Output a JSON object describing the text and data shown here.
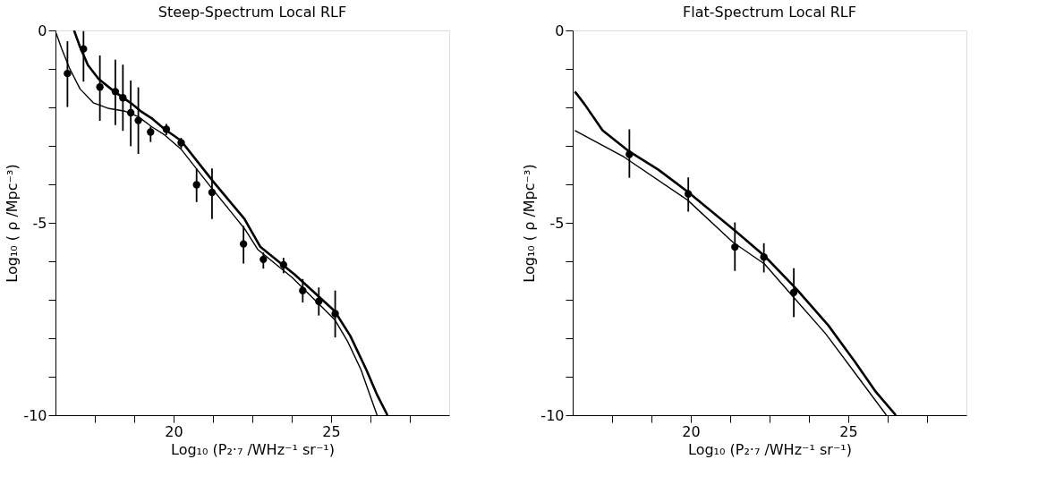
{
  "chart_data": [
    {
      "type": "line",
      "title": "Steep-Spectrum Local RLF",
      "xlabel": "Log₁₀ (P₂·₇ /WHz⁻¹ sr⁻¹)",
      "ylabel": "Log₁₀ ( ρ /Mpc⁻³)",
      "xlim": [
        16.25,
        28.75
      ],
      "ylim": [
        -10,
        0
      ],
      "xticks": [
        {
          "value": 17.5,
          "label": null
        },
        {
          "value": 18.75,
          "label": null
        },
        20,
        {
          "value": 21.25,
          "label": null
        },
        {
          "value": 22.5,
          "label": null
        },
        {
          "value": 23.75,
          "label": null
        },
        25,
        {
          "value": 26.25,
          "label": null
        },
        {
          "value": 27.5,
          "label": null
        }
      ],
      "yticks": [
        -10,
        {
          "value": -9,
          "label": null
        },
        {
          "value": -8,
          "label": null
        },
        {
          "value": -7,
          "label": null
        },
        {
          "value": -6,
          "label": null
        },
        -5,
        {
          "value": -4,
          "label": null
        },
        {
          "value": -3,
          "label": null
        },
        {
          "value": -2,
          "label": null
        },
        {
          "value": -1,
          "label": null
        },
        0
      ],
      "grid": false,
      "legend": false,
      "series": [
        {
          "color": "#000000",
          "x": [
            16.84,
            17.03,
            17.28,
            17.62,
            18.12,
            18.63,
            18.96,
            19.3,
            19.72,
            20.23,
            21.24,
            22.25,
            22.75,
            23.85,
            25.11,
            25.61,
            26.12,
            26.46,
            26.79
          ],
          "values": [
            0,
            -0.43,
            -0.9,
            -1.26,
            -1.59,
            -1.88,
            -2.1,
            -2.28,
            -2.57,
            -2.86,
            -3.91,
            -4.9,
            -5.62,
            -6.35,
            -7.29,
            -7.94,
            -8.82,
            -9.47,
            -10
          ]
        },
        {
          "color": "#000000",
          "x": [
            16.27,
            16.44,
            16.69,
            17.03,
            17.45,
            17.95,
            18.46,
            18.88,
            19.3,
            19.72,
            20.23,
            21.24,
            22.25,
            22.67,
            23.76,
            25.11,
            25.53,
            25.95,
            26.2,
            26.46
          ],
          "values": [
            -0.07,
            -0.46,
            -0.97,
            -1.52,
            -1.88,
            -2.03,
            -2.1,
            -2.24,
            -2.5,
            -2.72,
            -3.08,
            -4.13,
            -5.15,
            -5.69,
            -6.42,
            -7.51,
            -8.09,
            -8.82,
            -9.4,
            -10
          ]
        },
        {
          "type": "scatter",
          "color": "#000000",
          "marker": "circle",
          "x": [
            16.63,
            17.14,
            17.66,
            18.15,
            18.39,
            18.64,
            18.88,
            19.27,
            19.77,
            20.24,
            20.73,
            21.22,
            22.22,
            22.85,
            23.49,
            24.1,
            24.61,
            25.13
          ],
          "values": [
            -1.12,
            -0.48,
            -1.47,
            -1.59,
            -1.75,
            -2.14,
            -2.34,
            -2.64,
            -2.57,
            -2.92,
            -4.01,
            -4.21,
            -5.55,
            -5.95,
            -6.09,
            -6.76,
            -7.04,
            -7.36
          ],
          "errors": [
            [
              -1.99,
              -0.28
            ],
            [
              -1.33,
              -0.02
            ],
            [
              -2.35,
              -0.65
            ],
            [
              -2.46,
              -0.76
            ],
            [
              -2.61,
              -0.89
            ],
            [
              -3.01,
              -1.3
            ],
            [
              -3.21,
              -1.48
            ],
            [
              -2.9,
              -2.5
            ],
            [
              -2.72,
              -2.43
            ],
            [
              -3.07,
              -2.79
            ],
            [
              -4.46,
              -3.59
            ],
            [
              -4.9,
              -3.59
            ],
            [
              -6.06,
              -5.08
            ],
            [
              -6.19,
              -5.77
            ],
            [
              -6.31,
              -5.91
            ],
            [
              -7.07,
              -6.46
            ],
            [
              -7.41,
              -6.68
            ],
            [
              -7.98,
              -6.76
            ]
          ]
        }
      ]
    },
    {
      "type": "line",
      "title": "Flat-Spectrum Local RLF",
      "xlabel": "Log₁₀ (P₂·₇ /WHz⁻¹ sr⁻¹)",
      "ylabel": "Log₁₀ ( ρ /Mpc⁻³)",
      "xlim": [
        16.25,
        28.75
      ],
      "ylim": [
        -10,
        0
      ],
      "xticks": [
        {
          "value": 17.5,
          "label": null
        },
        {
          "value": 18.75,
          "label": null
        },
        20,
        {
          "value": 21.25,
          "label": null
        },
        {
          "value": 22.5,
          "label": null
        },
        {
          "value": 23.75,
          "label": null
        },
        25,
        {
          "value": 26.25,
          "label": null
        },
        {
          "value": 27.5,
          "label": null
        }
      ],
      "yticks": [
        -10,
        {
          "value": -9,
          "label": null
        },
        {
          "value": -8,
          "label": null
        },
        {
          "value": -7,
          "label": null
        },
        {
          "value": -6,
          "label": null
        },
        -5,
        {
          "value": -4,
          "label": null
        },
        {
          "value": -3,
          "label": null
        },
        {
          "value": -2,
          "label": null
        },
        {
          "value": -1,
          "label": null
        },
        0
      ],
      "grid": false,
      "legend": false,
      "series": [
        {
          "color": "#000000",
          "x": [
            16.32,
            16.62,
            17.2,
            18.05,
            18.97,
            19.9,
            21.41,
            22.34,
            23.35,
            24.36,
            25.2,
            25.88,
            26.51
          ],
          "values": [
            -1.59,
            -1.91,
            -2.6,
            -3.15,
            -3.62,
            -4.19,
            -5.21,
            -5.86,
            -6.72,
            -7.66,
            -8.6,
            -9.4,
            -10
          ]
        },
        {
          "color": "#000000",
          "x": [
            16.32,
            17.88,
            19.9,
            21.33,
            22.34,
            23.27,
            24.28,
            25.2,
            26.21
          ],
          "values": [
            -2.6,
            -3.29,
            -4.41,
            -5.5,
            -6.07,
            -6.94,
            -7.88,
            -8.89,
            -10
          ]
        },
        {
          "type": "scatter",
          "color": "#000000",
          "marker": "circle",
          "x": [
            18.05,
            19.92,
            21.4,
            22.32,
            23.27
          ],
          "values": [
            -3.22,
            -4.25,
            -5.63,
            -5.89,
            -6.81
          ],
          "errors": [
            [
              -3.83,
              -2.57
            ],
            [
              -4.71,
              -3.82
            ],
            [
              -6.25,
              -4.99
            ],
            [
              -6.29,
              -5.53
            ],
            [
              -7.45,
              -6.18
            ]
          ]
        }
      ]
    }
  ]
}
